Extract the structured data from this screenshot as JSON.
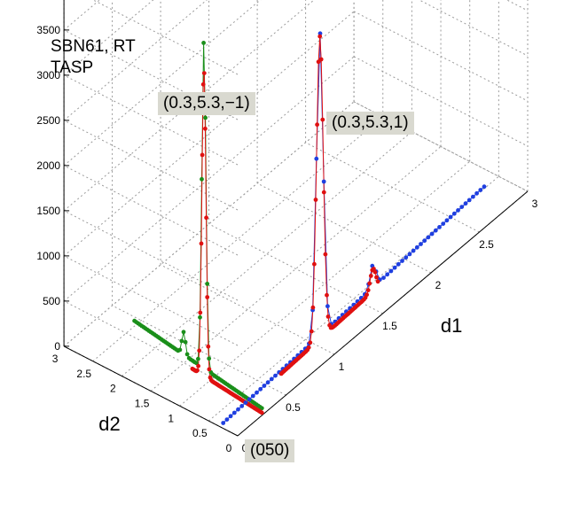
{
  "chart_data": {
    "type": "line3d",
    "title_lines": [
      "SBN61, RT",
      "TASP"
    ],
    "xlabel": "d1",
    "ylabel": "d2",
    "zlim": [
      0,
      4000
    ],
    "xlim": [
      0,
      3
    ],
    "ylim": [
      0,
      3
    ],
    "zticks": [
      "0",
      "500",
      "1000",
      "1500",
      "2000",
      "2500",
      "3000",
      "3500",
      "4000"
    ],
    "xticks": [
      "0",
      "0.5",
      "1",
      "1.5",
      "2",
      "2.5",
      "3"
    ],
    "yticks": [
      "0",
      "0.5",
      "1",
      "1.5",
      "2",
      "2.5",
      "3"
    ],
    "grid": true,
    "annotations": [
      "(0.3,5.3,−1)",
      "(0.3,5.3,1)",
      "(050)"
    ],
    "colors": {
      "green": "#1a8f1a",
      "red": "#e01010",
      "blue": "#1f3fe0",
      "grid": "#9a9a9a",
      "annot_bg": "#d9d9d0"
    },
    "series": [
      {
        "color": "green",
        "y_start": 2.2,
        "y_end": 0.0,
        "peak_at": 1.0,
        "peak": 3650,
        "base": 400
      },
      {
        "color": "red",
        "y_start": 1.2,
        "y_end": 0.0,
        "peak_at": 1.0,
        "peak": 3400,
        "base": 150
      },
      {
        "color": "blue",
        "x_start": 0.0,
        "x_end": 2.7,
        "peak_at": 1.0,
        "peak": 3350,
        "base": 300
      },
      {
        "color": "red",
        "x_start": 0.6,
        "x_end": 1.6,
        "peak_at": 1.0,
        "peak": 3350,
        "base": 150
      }
    ]
  }
}
